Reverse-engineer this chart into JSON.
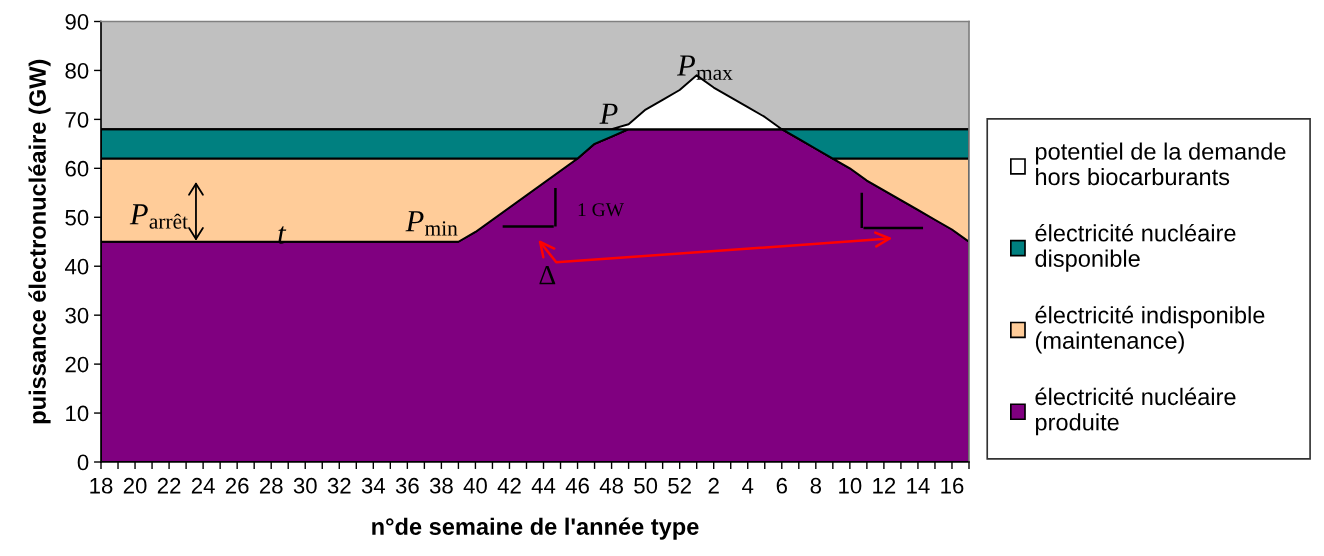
{
  "chart_data": {
    "type": "area",
    "stacked": true,
    "xlabel": "n°de semaine de l'année type",
    "ylabel": "puissance électronucléaire (GW)",
    "categories": [
      "18",
      null,
      "20",
      null,
      "22",
      null,
      "24",
      null,
      "26",
      null,
      "28",
      null,
      "30",
      null,
      "32",
      null,
      "34",
      null,
      "36",
      null,
      "38",
      null,
      "40",
      null,
      "42",
      null,
      "44",
      null,
      "46",
      null,
      "48",
      null,
      "50",
      null,
      "52",
      null,
      "2",
      null,
      "4",
      null,
      "6",
      null,
      "8",
      null,
      "10",
      null,
      "12",
      null,
      "14",
      null,
      "16",
      null
    ],
    "series": [
      {
        "name": "électricité nucléaire\nproduite",
        "color": "#800080",
        "values": [
          45,
          45,
          45,
          45,
          45,
          45,
          45,
          45,
          45,
          45,
          45,
          45,
          45,
          45,
          45,
          45,
          45,
          45,
          45,
          45,
          45,
          45,
          47,
          49.5,
          52,
          54.5,
          57,
          59.5,
          62,
          65,
          66.5,
          68,
          68,
          68,
          68,
          68,
          68,
          68,
          68,
          68,
          68,
          66,
          64,
          62,
          60,
          57.5,
          55.5,
          53.5,
          51.5,
          49.5,
          47.5,
          45
        ]
      },
      {
        "name": "électricité indisponible\n(maintenance)",
        "color": "#ffcc99",
        "values": [
          17,
          17,
          17,
          17,
          17,
          17,
          17,
          17,
          17,
          17,
          17,
          17,
          17,
          17,
          17,
          17,
          17,
          17,
          17,
          17,
          17,
          17,
          15,
          12.5,
          10,
          7.5,
          5,
          2.5,
          0,
          0,
          0,
          0,
          0,
          0,
          0,
          0,
          0,
          0,
          0,
          0,
          0,
          0,
          0,
          0,
          2,
          4.5,
          6.5,
          8.5,
          10.5,
          12.5,
          14.5,
          17
        ]
      },
      {
        "name": "électricité nucléaire\ndisponible",
        "color": "#008080",
        "values": [
          6,
          6,
          6,
          6,
          6,
          6,
          6,
          6,
          6,
          6,
          6,
          6,
          6,
          6,
          6,
          6,
          6,
          6,
          6,
          6,
          6,
          6,
          6,
          6,
          6,
          6,
          6,
          6,
          6,
          3,
          1.5,
          0,
          0,
          0,
          0,
          0,
          0,
          0,
          0,
          0,
          0,
          2,
          4,
          6,
          6,
          6,
          6,
          6,
          6,
          6,
          6,
          6
        ]
      },
      {
        "name": "potentiel de la demande\nhors biocarburants",
        "color": "#ffffff",
        "values": [
          0,
          0,
          0,
          0,
          0,
          0,
          0,
          0,
          0,
          0,
          0,
          0,
          0,
          0,
          0,
          0,
          0,
          0,
          0,
          0,
          0,
          0,
          0,
          0,
          0,
          0,
          0,
          0,
          0,
          0,
          0,
          1,
          4,
          6,
          8,
          11,
          8.5,
          6.5,
          4.5,
          2.5,
          0,
          0,
          0,
          0,
          0,
          0,
          0,
          0,
          0,
          0,
          0,
          0
        ]
      }
    ],
    "ylim": [
      0,
      90
    ],
    "yticks": [
      0,
      10,
      20,
      30,
      40,
      50,
      60,
      70,
      80,
      90
    ],
    "legend": "right",
    "annotations": [
      "P$_{max}$",
      "P",
      "P$_{arrêt}$",
      "t",
      "P$_{min}$",
      "1 GW",
      "Δ"
    ]
  }
}
